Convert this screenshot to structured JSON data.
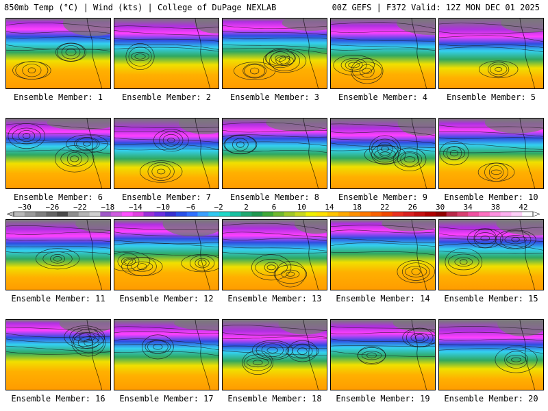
{
  "header": {
    "left": "850mb Temp (°C) | Wind (kts) | College of DuPage NEXLAB",
    "right": "00Z GEFS | F372 Valid: 12Z MON DEC 01 2025"
  },
  "caption_prefix": "Ensemble Member:",
  "members": [
    {
      "label": "Ensemble Member: 1",
      "number": 1
    },
    {
      "label": "Ensemble Member: 2",
      "number": 2
    },
    {
      "label": "Ensemble Member: 3",
      "number": 3
    },
    {
      "label": "Ensemble Member: 4",
      "number": 4
    },
    {
      "label": "Ensemble Member: 5",
      "number": 5
    },
    {
      "label": "Ensemble Member: 6",
      "number": 6
    },
    {
      "label": "Ensemble Member: 7",
      "number": 7
    },
    {
      "label": "Ensemble Member: 8",
      "number": 8
    },
    {
      "label": "Ensemble Member: 9",
      "number": 9
    },
    {
      "label": "Ensemble Member: 10",
      "number": 10
    },
    {
      "label": "Ensemble Member: 11",
      "number": 11
    },
    {
      "label": "Ensemble Member: 12",
      "number": 12
    },
    {
      "label": "Ensemble Member: 13",
      "number": 13
    },
    {
      "label": "Ensemble Member: 14",
      "number": 14
    },
    {
      "label": "Ensemble Member: 15",
      "number": 15
    },
    {
      "label": "Ensemble Member: 16",
      "number": 16
    },
    {
      "label": "Ensemble Member: 17",
      "number": 17
    },
    {
      "label": "Ensemble Member: 18",
      "number": 18
    },
    {
      "label": "Ensemble Member: 19",
      "number": 19
    },
    {
      "label": "Ensemble Member: 20",
      "number": 20
    }
  ],
  "colorbar": {
    "tick_labels": [
      "−30",
      "−26",
      "−22",
      "−18",
      "−14",
      "−10",
      "−6",
      "−2",
      "2",
      "6",
      "10",
      "14",
      "18",
      "22",
      "26",
      "30",
      "34",
      "38",
      "42"
    ],
    "colors": [
      "#b9b9b9",
      "#9a9a9a",
      "#7e7e7e",
      "#646464",
      "#4a4a4a",
      "#8e8e8e",
      "#b4b4b4",
      "#cfcfcf",
      "#a058c8",
      "#d05ce0",
      "#ff50ff",
      "#e040e0",
      "#9a30d8",
      "#6a30e0",
      "#3830d0",
      "#2850e8",
      "#3070ff",
      "#3aa0ff",
      "#30c8f0",
      "#20d8c8",
      "#18c0a0",
      "#20a870",
      "#209850",
      "#40a838",
      "#70b830",
      "#a0c828",
      "#c8d820",
      "#f0f000",
      "#ffe000",
      "#ffc400",
      "#ffa800",
      "#ff9000",
      "#ff7800",
      "#f86000",
      "#f04800",
      "#e83020",
      "#d82020",
      "#c41010",
      "#b00000",
      "#900000",
      "#b82848",
      "#d84070",
      "#f050a0",
      "#ff70c0",
      "#ff90e0",
      "#ffb0f0",
      "#ffd0f8",
      "#ffffff"
    ]
  },
  "palette": {
    "cold_edge": "#7a7a7a",
    "purple": "#b030e0",
    "magenta": "#ff40ff",
    "blue": "#2e4de0",
    "cyan": "#34d0f0",
    "green": "#30a860",
    "yellow": "#f0e000",
    "orange": "#ffb000",
    "warm": "#ff9a00",
    "contour": "#1a1a1a"
  }
}
